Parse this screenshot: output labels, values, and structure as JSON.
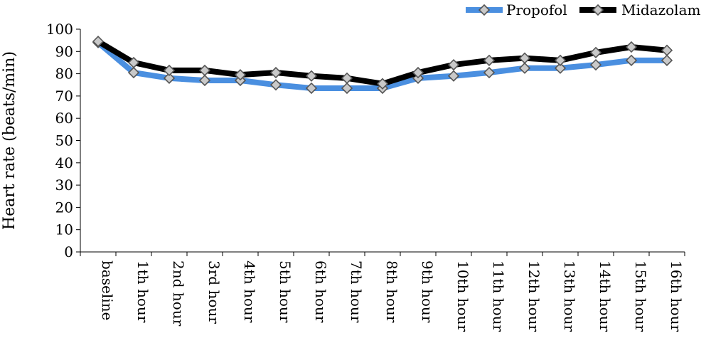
{
  "chart_data": {
    "type": "line",
    "title": "",
    "xlabel": "",
    "ylabel": "Heart rate (beats/min)",
    "ylim": [
      0,
      100
    ],
    "yticks": [
      0,
      10,
      20,
      30,
      40,
      50,
      60,
      70,
      80,
      90,
      100
    ],
    "grid": false,
    "legend_position": "top-right",
    "categories": [
      "baseline",
      "1th hour",
      "2nd hour",
      "3rd hour",
      "4th hour",
      "5th hour",
      "6th hour",
      "7th hour",
      "8th hour",
      "9th hour",
      "10th hour",
      "11th hour",
      "12th hour",
      "13th hour",
      "14th hour",
      "15th hour",
      "16th hour"
    ],
    "series": [
      {
        "name": "Propofol",
        "color": "#4a8fe0",
        "marker": "diamond",
        "values": [
          94,
          80.5,
          78,
          77,
          77,
          75,
          73.5,
          73.5,
          73.5,
          78,
          79,
          80.5,
          82.5,
          82.5,
          84,
          86,
          86
        ]
      },
      {
        "name": "Midazolam",
        "color": "#000000",
        "marker": "diamond",
        "values": [
          94.5,
          85,
          81.5,
          81.5,
          79.5,
          80.5,
          79,
          78,
          75.5,
          80.5,
          84,
          86,
          87,
          86,
          89.5,
          92,
          90.5
        ]
      }
    ]
  }
}
